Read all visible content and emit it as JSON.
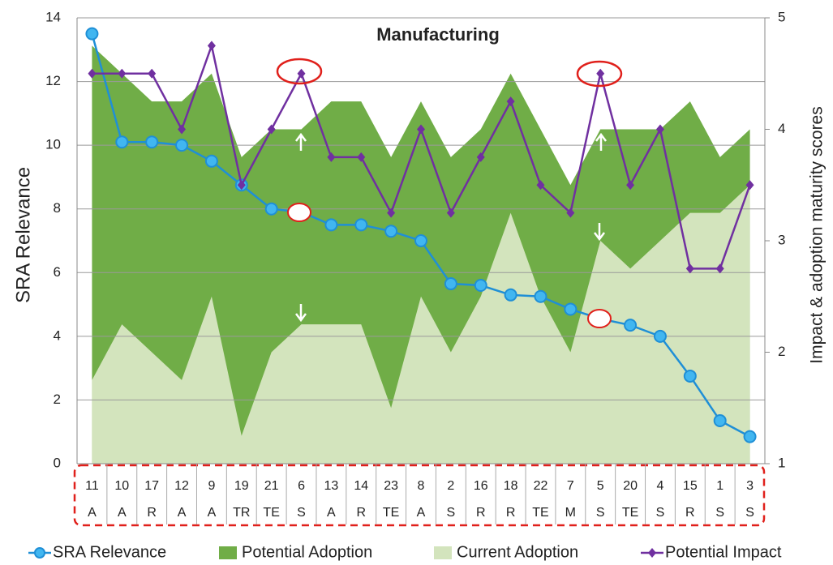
{
  "chart_data": {
    "type": "combo",
    "title": "Manufacturing",
    "y_label": "SRA Relevance",
    "y2_label": "Impact & adoption maturity scores",
    "categories": [
      "11",
      "10",
      "17",
      "12",
      "9",
      "19",
      "21",
      "6",
      "13",
      "14",
      "23",
      "8",
      "2",
      "16",
      "18",
      "22",
      "7",
      "5",
      "20",
      "4",
      "15",
      "1",
      "3"
    ],
    "category_codes": [
      "A",
      "A",
      "R",
      "A",
      "A",
      "TR",
      "TE",
      "S",
      "A",
      "R",
      "TE",
      "A",
      "S",
      "R",
      "R",
      "TE",
      "M",
      "S",
      "TE",
      "S",
      "R",
      "S",
      "S"
    ],
    "series": [
      {
        "name": "SRA Relevance",
        "type": "line",
        "color": "#1f8fd6",
        "values": [
          13.5,
          10.1,
          10.1,
          10.0,
          9.5,
          8.75,
          8.0,
          7.9,
          7.5,
          7.5,
          7.3,
          7.0,
          5.65,
          5.6,
          5.3,
          5.25,
          4.85,
          4.55,
          4.35,
          4.0,
          2.75,
          1.35,
          0.85
        ]
      },
      {
        "name": "Potential Adoption",
        "type": "area",
        "axis": "y2",
        "color": "#70ad47",
        "values": [
          4.75,
          4.5,
          4.25,
          4.25,
          4.5,
          3.75,
          4.0,
          4.0,
          4.25,
          4.25,
          3.75,
          4.25,
          3.75,
          4.0,
          4.5,
          4.0,
          3.5,
          4.0,
          4.0,
          4.0,
          4.25,
          3.75,
          4.0
        ]
      },
      {
        "name": "Current Adoption",
        "type": "area",
        "axis": "y2",
        "color": "#d3e4bd",
        "values": [
          1.75,
          2.25,
          2.0,
          1.75,
          2.5,
          1.25,
          2.0,
          2.25,
          2.25,
          2.25,
          1.5,
          2.5,
          2.0,
          2.5,
          3.25,
          2.5,
          2.0,
          3.0,
          2.75,
          3.0,
          3.25,
          3.25,
          3.5
        ]
      },
      {
        "name": "Potential Impact",
        "type": "line",
        "axis": "y2",
        "color": "#7030a0",
        "values": [
          4.5,
          4.5,
          4.5,
          4.0,
          4.75,
          3.5,
          4.0,
          4.5,
          3.75,
          3.75,
          3.25,
          4.0,
          3.25,
          3.75,
          4.25,
          3.5,
          3.25,
          4.5,
          3.5,
          4.0,
          2.75,
          2.75,
          3.5
        ]
      }
    ],
    "ylim": [
      0,
      14
    ],
    "yticks": [
      0,
      2,
      4,
      6,
      8,
      10,
      12,
      14
    ],
    "y2lim": [
      1,
      5
    ],
    "y2ticks": [
      1,
      2,
      3,
      4,
      5
    ],
    "grid": true
  }
}
